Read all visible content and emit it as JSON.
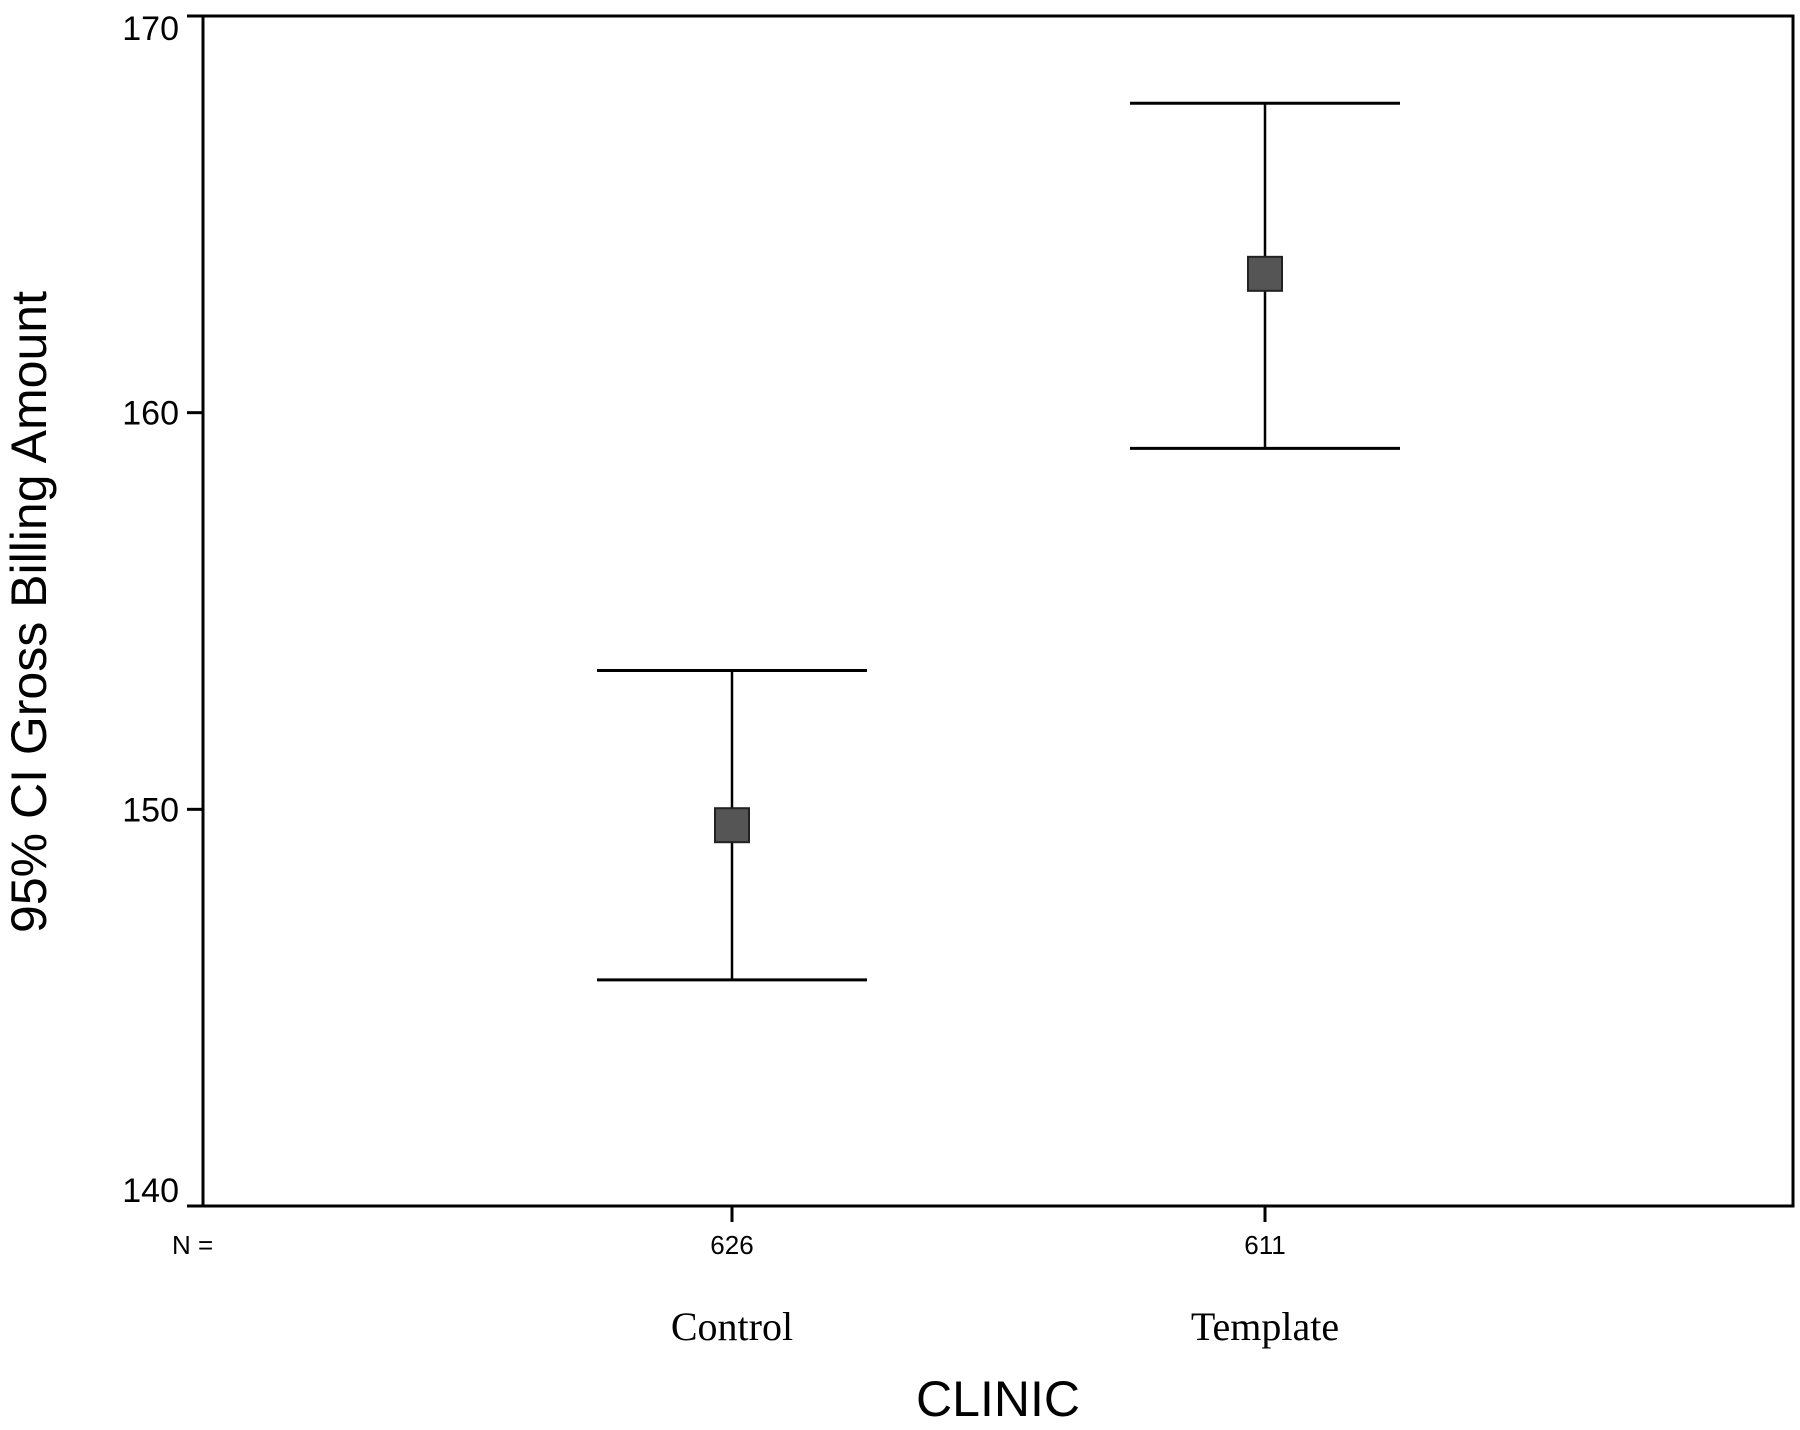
{
  "chart_data": {
    "type": "errorbar",
    "xlabel": "CLINIC",
    "ylabel": "95% CI Gross Billing Amount",
    "ylim": [
      140,
      170
    ],
    "yticks": [
      140,
      150,
      160,
      170
    ],
    "n_label": "N =",
    "grid": false,
    "legend": "none",
    "categories": [
      "Control",
      "Template"
    ],
    "n": [
      "626",
      "611"
    ],
    "points": [
      {
        "category": "Control",
        "mean": 149.6,
        "ci_lower": 145.7,
        "ci_upper": 153.5
      },
      {
        "category": "Template",
        "mean": 163.5,
        "ci_lower": 159.1,
        "ci_upper": 167.8
      }
    ],
    "colors": {
      "marker": "#555555",
      "line": "#000000"
    }
  }
}
